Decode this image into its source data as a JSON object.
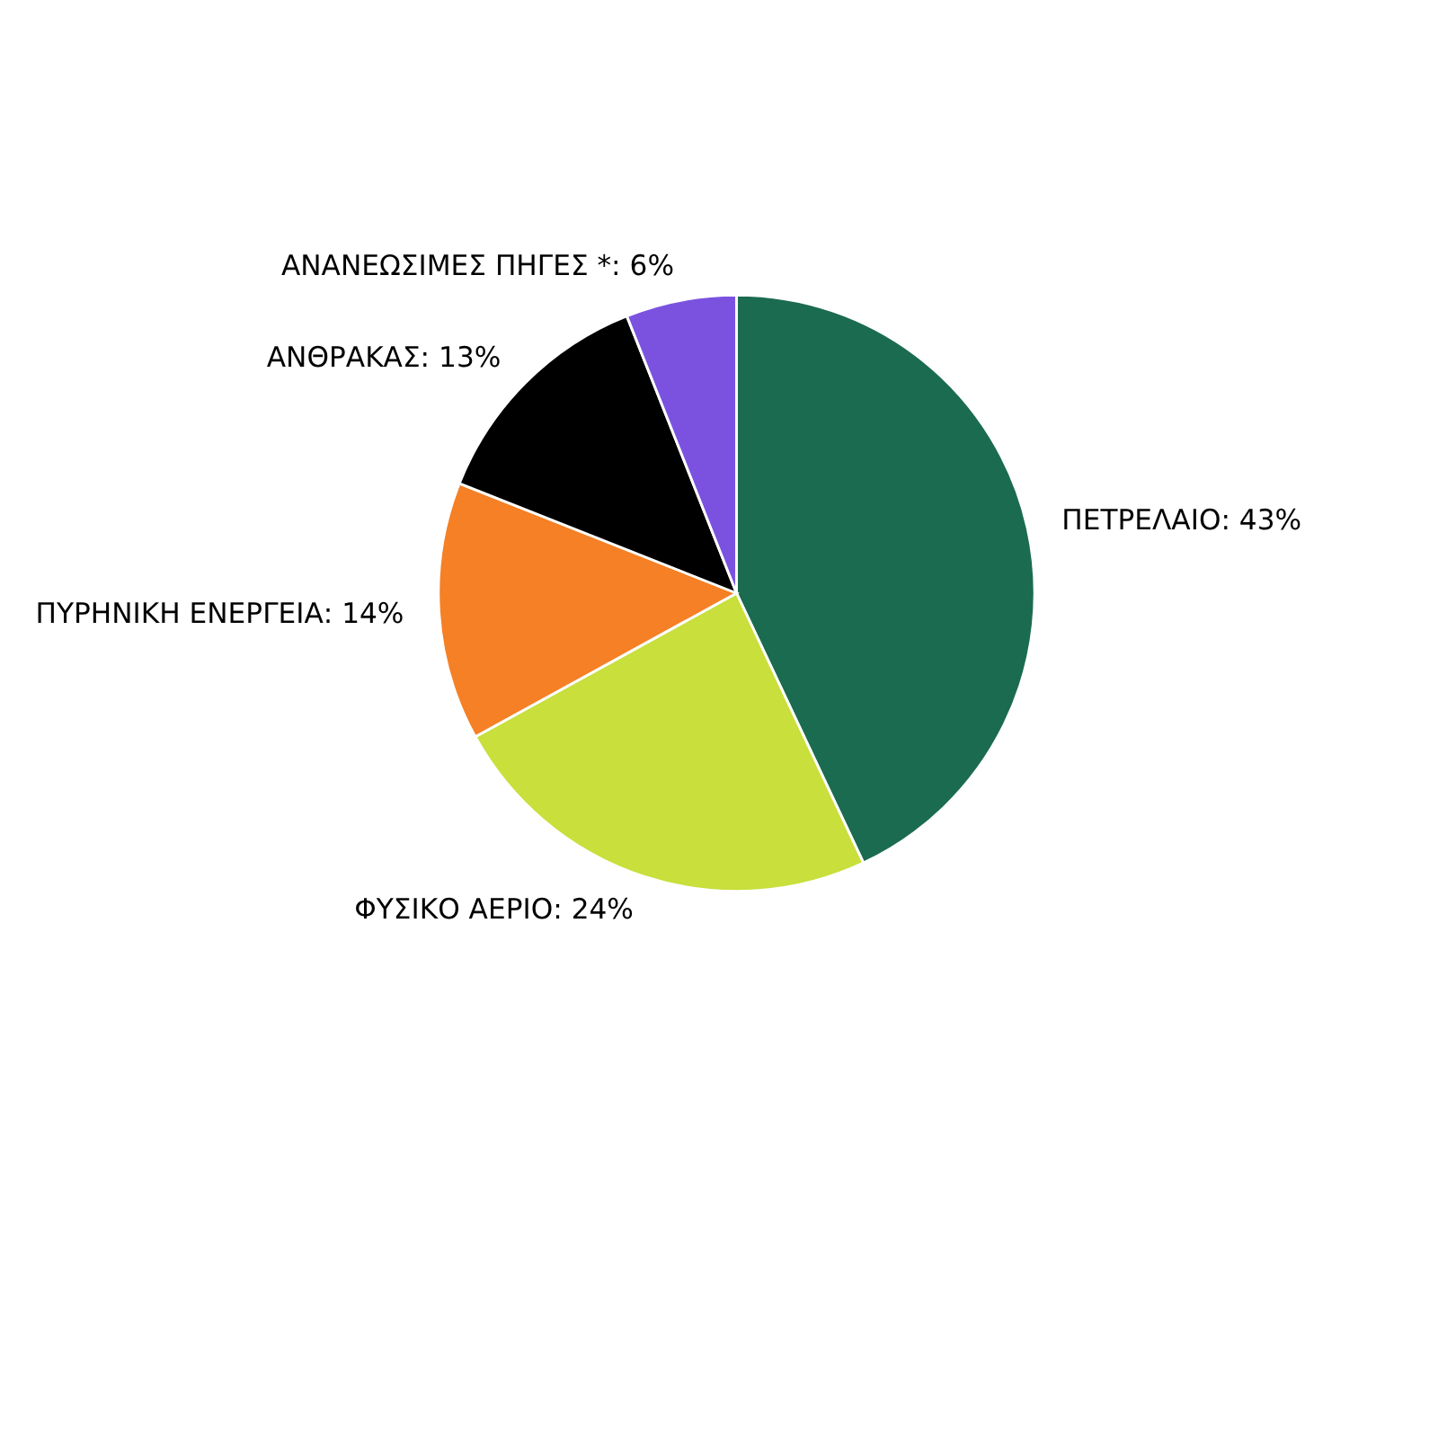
{
  "chart_data": {
    "type": "pie",
    "categories": [
      "ΠΕΤΡΕΛΑΙΟ",
      "ΦΥΣΙΚΟ ΑΕΡΙΟ",
      "ΠΥΡΗΝΙΚΗ ΕΝΕΡΓΕΙΑ",
      "ΑΝΘΡΑΚΑΣ",
      "ΑΝΑΝΕΩΣΙΜΕΣ ΠΗΓΕΣ *"
    ],
    "values": [
      43,
      24,
      14,
      13,
      6
    ],
    "value_labels": [
      "43%",
      "24%",
      "14%",
      "13%",
      "6%"
    ],
    "colors": [
      "#1b6b50",
      "#c8df3c",
      "#f58025",
      "#000000",
      "#7b52e0"
    ],
    "legend": false
  }
}
